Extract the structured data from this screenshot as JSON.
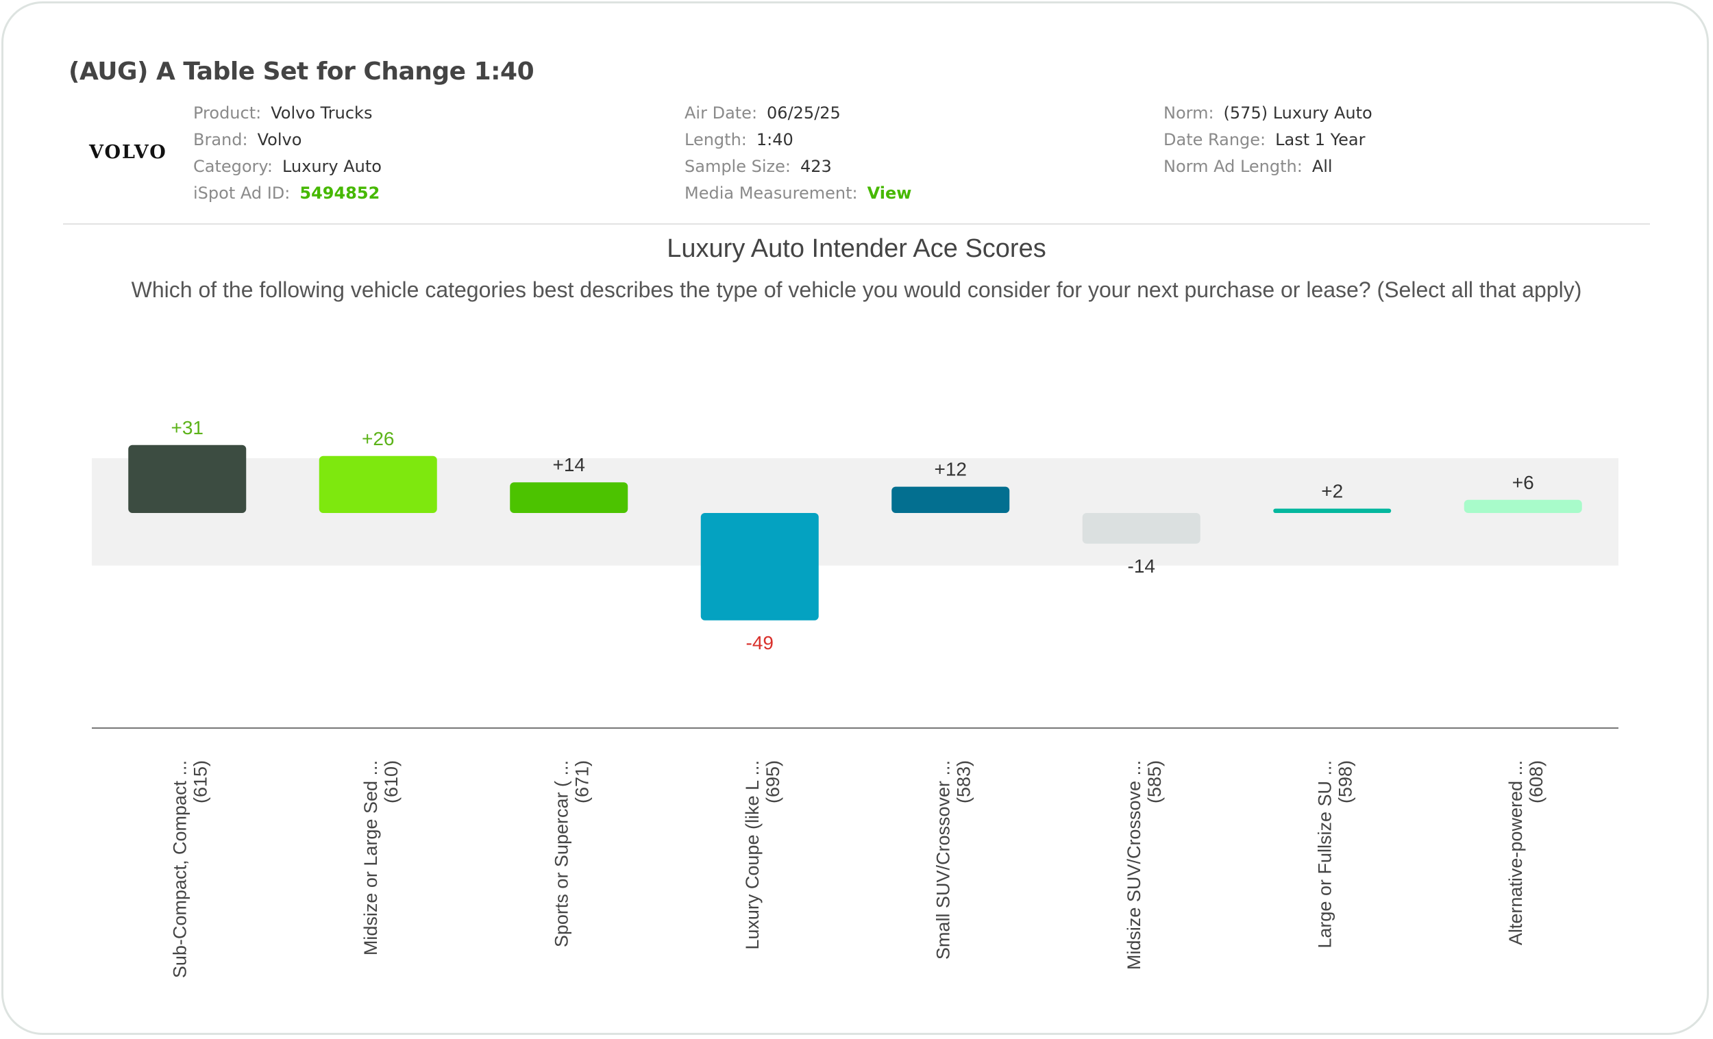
{
  "ad": {
    "title": "(AUG) A Table Set for Change 1:40",
    "logo_text": "VOLVO",
    "meta_left": [
      {
        "label": "Product:",
        "value": "Volvo Trucks"
      },
      {
        "label": "Brand:",
        "value": "Volvo"
      },
      {
        "label": "Category:",
        "value": "Luxury Auto"
      },
      {
        "label": "iSpot Ad ID:",
        "value": "5494852"
      }
    ],
    "meta_mid": [
      {
        "label": "Air Date:",
        "value": "06/25/25"
      },
      {
        "label": "Length:",
        "value": "1:40"
      },
      {
        "label": "Sample Size:",
        "value": "423"
      },
      {
        "label": "Media Measurement:",
        "value": "View"
      }
    ],
    "meta_right": [
      {
        "label": "Norm:",
        "value": "(575) Luxury Auto"
      },
      {
        "label": "Date Range:",
        "value": "Last 1 Year"
      },
      {
        "label": "Norm Ad Length:",
        "value": "All"
      }
    ]
  },
  "colors": {
    "positive_label": "#5cb319",
    "negative_label": "#d9302b",
    "neutral_label": "#333333",
    "norm_band": "#f1f1f1",
    "axis": "#777777"
  },
  "chart_data": {
    "type": "bar",
    "title": "Luxury Auto Intender Ace Scores",
    "subtitle": "Which of the following vehicle categories best describes the type of vehicle you would consider for your next purchase or lease? (Select all that apply)",
    "categories": [
      "Sub-Compact, Compact ...",
      "Midsize or Large Sed ...",
      "Sports or Supercar ( ...",
      "Luxury Coupe (like L ...",
      "Small SUV/Crossover ...",
      "Midsize SUV/Crossove ...",
      "Large or Fullsize SU ...",
      "Alternative-powered ..."
    ],
    "counts": [
      "(615)",
      "(610)",
      "(671)",
      "(695)",
      "(583)",
      "(585)",
      "(598)",
      "(608)"
    ],
    "values": [
      31,
      26,
      14,
      -49,
      12,
      -14,
      2,
      6
    ],
    "value_labels": [
      "+31",
      "+26",
      "+14",
      "-49",
      "+12",
      "-14",
      "+2",
      "+6"
    ],
    "bar_colors": [
      "#3c4c41",
      "#7ee80e",
      "#4cc300",
      "#04a2c1",
      "#036f90",
      "#dbe0e0",
      "#05b79e",
      "#a8fbca"
    ],
    "label_colors": [
      "positive",
      "positive",
      "neutral",
      "negative",
      "neutral",
      "neutral",
      "neutral",
      "neutral"
    ],
    "norm_band": [
      -24,
      25
    ],
    "ylim": [
      -100,
      45
    ],
    "grid": false,
    "legend": "none"
  }
}
